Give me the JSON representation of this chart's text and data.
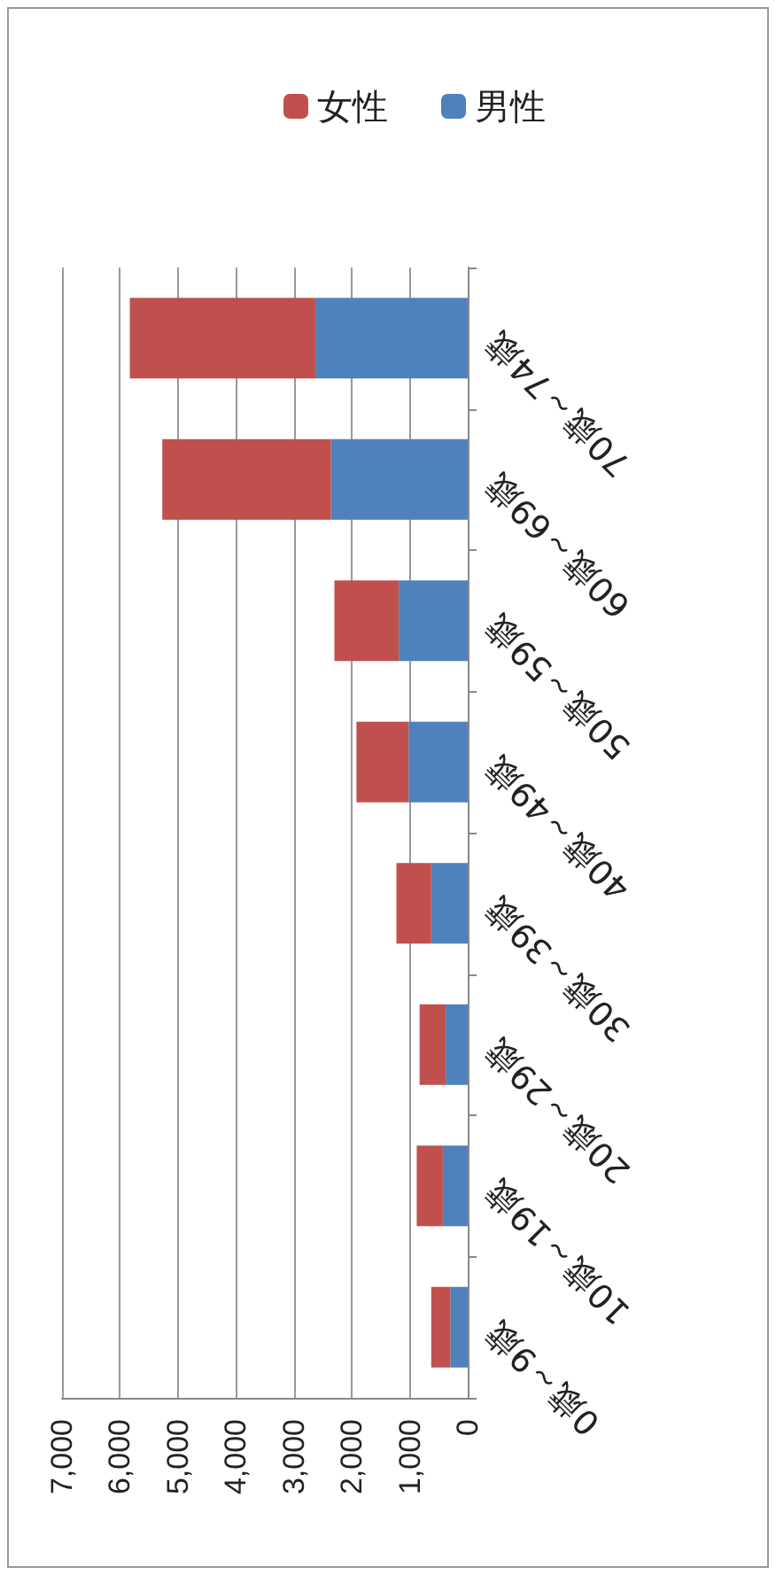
{
  "chart_data": {
    "type": "bar",
    "stacked": true,
    "orientation": "horizontal",
    "categories": [
      "70歳～74歳",
      "60歳～69歳",
      "50歳～59歳",
      "40歳～49歳",
      "30歳～39歳",
      "20歳～29歳",
      "10歳～19歳",
      "0歳～9歳"
    ],
    "series": [
      {
        "name": "男性",
        "color": "#4f81bd",
        "values": [
          2630,
          2360,
          1190,
          1020,
          630,
          380,
          430,
          300
        ]
      },
      {
        "name": "女性",
        "color": "#c0504d",
        "values": [
          3200,
          2910,
          1110,
          900,
          600,
          450,
          450,
          330
        ]
      }
    ],
    "xlim": [
      7000,
      0
    ],
    "xticks": [
      {
        "value": 0,
        "label": "0"
      },
      {
        "value": 1000,
        "label": "1,000"
      },
      {
        "value": 2000,
        "label": "2,000"
      },
      {
        "value": 3000,
        "label": "3,000"
      },
      {
        "value": 4000,
        "label": "4,000"
      },
      {
        "value": 5000,
        "label": "5,000"
      },
      {
        "value": 6000,
        "label": "6,000"
      },
      {
        "value": 7000,
        "label": "7,000"
      }
    ],
    "grid": "x",
    "legend": "top"
  }
}
